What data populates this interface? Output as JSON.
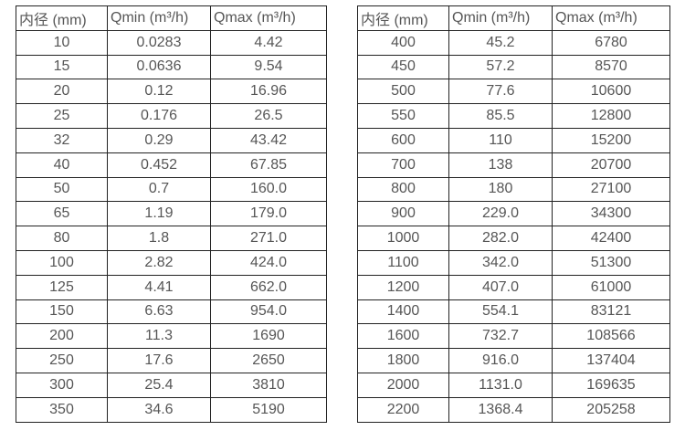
{
  "page": {
    "background_color": "#ffffff",
    "border_color": "#222222",
    "text_color": "#565656"
  },
  "tables": [
    {
      "name": "flow-table-small-diameters",
      "headers": [
        "内径 (mm)",
        "Qmin (m³/h)",
        "Qmax (m³/h)"
      ],
      "rows": [
        [
          "10",
          "0.0283",
          "4.42"
        ],
        [
          "15",
          "0.0636",
          "9.54"
        ],
        [
          "20",
          "0.12",
          "16.96"
        ],
        [
          "25",
          "0.176",
          "26.5"
        ],
        [
          "32",
          "0.29",
          "43.42"
        ],
        [
          "40",
          "0.452",
          "67.85"
        ],
        [
          "50",
          "0.7",
          "160.0"
        ],
        [
          "65",
          "1.19",
          "179.0"
        ],
        [
          "80",
          "1.8",
          "271.0"
        ],
        [
          "100",
          "2.82",
          "424.0"
        ],
        [
          "125",
          "4.41",
          "662.0"
        ],
        [
          "150",
          "6.63",
          "954.0"
        ],
        [
          "200",
          "11.3",
          "1690"
        ],
        [
          "250",
          "17.6",
          "2650"
        ],
        [
          "300",
          "25.4",
          "3810"
        ],
        [
          "350",
          "34.6",
          "5190"
        ]
      ]
    },
    {
      "name": "flow-table-large-diameters",
      "headers": [
        "内径 (mm)",
        "Qmin (m³/h)",
        "Qmax (m³/h)"
      ],
      "rows": [
        [
          "400",
          "45.2",
          "6780"
        ],
        [
          "450",
          "57.2",
          "8570"
        ],
        [
          "500",
          "77.6",
          "10600"
        ],
        [
          "550",
          "85.5",
          "12800"
        ],
        [
          "600",
          "110",
          "15200"
        ],
        [
          "700",
          "138",
          "20700"
        ],
        [
          "800",
          "180",
          "27100"
        ],
        [
          "900",
          "229.0",
          "34300"
        ],
        [
          "1000",
          "282.0",
          "42400"
        ],
        [
          "1100",
          "342.0",
          "51300"
        ],
        [
          "1200",
          "407.0",
          "61000"
        ],
        [
          "1400",
          "554.1",
          "83121"
        ],
        [
          "1600",
          "732.7",
          "108566"
        ],
        [
          "1800",
          "916.0",
          "137404"
        ],
        [
          "2000",
          "1131.0",
          "169635"
        ],
        [
          "2200",
          "1368.4",
          "205258"
        ]
      ]
    }
  ]
}
